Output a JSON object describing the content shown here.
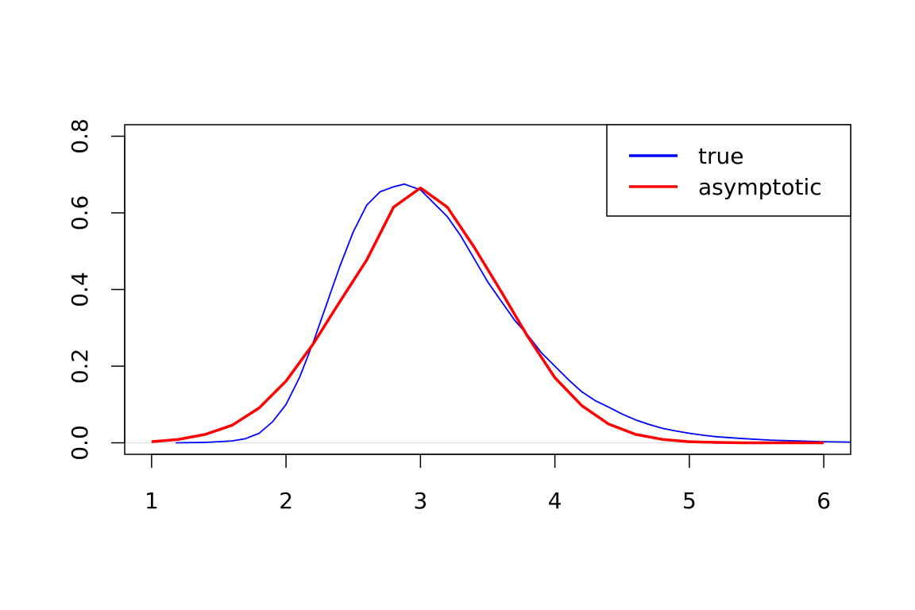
{
  "chart_data": {
    "type": "line",
    "title": "",
    "xlabel": "",
    "ylabel": "",
    "xlim": [
      0.8,
      6.2
    ],
    "ylim": [
      -0.03,
      0.83
    ],
    "x_ticks": [
      1,
      2,
      3,
      4,
      5,
      6
    ],
    "x_tick_labels": [
      "1",
      "2",
      "3",
      "4",
      "5",
      "6"
    ],
    "y_ticks": [
      0.0,
      0.2,
      0.4,
      0.6,
      0.8
    ],
    "y_tick_labels": [
      "0.0",
      "0.2",
      "0.4",
      "0.6",
      "0.8"
    ],
    "grid": false,
    "legend_position": "top-right",
    "series": [
      {
        "name": "true",
        "color": "#0000ff",
        "x": [
          1.18,
          1.4,
          1.6,
          1.7,
          1.8,
          1.9,
          2.0,
          2.1,
          2.2,
          2.3,
          2.4,
          2.5,
          2.6,
          2.7,
          2.8,
          2.88,
          3.0,
          3.1,
          3.2,
          3.3,
          3.4,
          3.5,
          3.6,
          3.7,
          3.8,
          3.9,
          4.0,
          4.1,
          4.2,
          4.3,
          4.4,
          4.5,
          4.6,
          4.7,
          4.8,
          4.9,
          5.0,
          5.1,
          5.2,
          5.4,
          5.6,
          5.8,
          6.0,
          6.2
        ],
        "y": [
          0.0,
          0.001,
          0.005,
          0.011,
          0.025,
          0.055,
          0.1,
          0.17,
          0.26,
          0.36,
          0.46,
          0.55,
          0.62,
          0.655,
          0.668,
          0.675,
          0.66,
          0.625,
          0.59,
          0.54,
          0.48,
          0.42,
          0.37,
          0.32,
          0.28,
          0.235,
          0.2,
          0.165,
          0.133,
          0.11,
          0.093,
          0.075,
          0.06,
          0.048,
          0.038,
          0.031,
          0.025,
          0.02,
          0.016,
          0.011,
          0.007,
          0.005,
          0.003,
          0.002
        ]
      },
      {
        "name": "asymptotic",
        "color": "#ff0000",
        "x": [
          1.0,
          1.2,
          1.4,
          1.6,
          1.8,
          2.0,
          2.2,
          2.4,
          2.6,
          2.8,
          3.0,
          3.2,
          3.4,
          3.6,
          3.8,
          4.0,
          4.2,
          4.4,
          4.6,
          4.8,
          5.0,
          5.2,
          5.4,
          5.6,
          5.8,
          6.0
        ],
        "y": [
          0.003,
          0.009,
          0.022,
          0.046,
          0.091,
          0.161,
          0.257,
          0.368,
          0.477,
          0.615,
          0.665,
          0.615,
          0.51,
          0.395,
          0.276,
          0.17,
          0.097,
          0.049,
          0.022,
          0.009,
          0.003,
          0.001,
          0.0,
          0.0,
          0.0,
          0.0
        ]
      }
    ],
    "reference_line": {
      "y": 0.0,
      "color": "#dddddd"
    }
  }
}
